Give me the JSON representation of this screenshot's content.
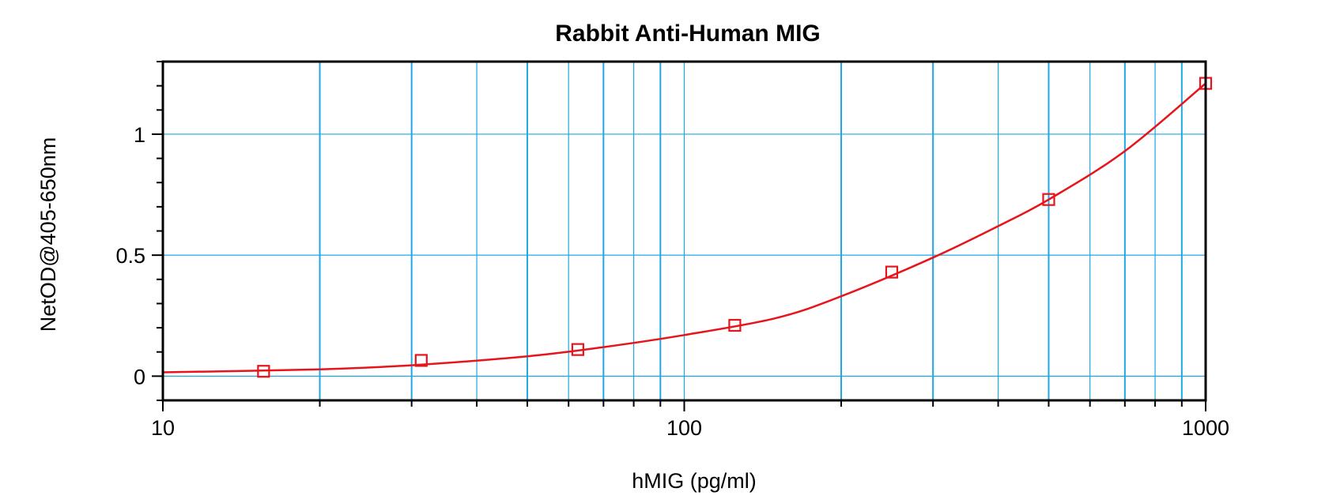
{
  "chart_data": {
    "type": "scatter",
    "title": "Rabbit Anti-Human MIG",
    "xlabel": "hMIG (pg/ml)",
    "ylabel": "NetOD@405-650nm",
    "x_scale": "log",
    "xlim": [
      10,
      1000
    ],
    "ylim": [
      -0.1,
      1.3
    ],
    "x_ticks": [
      {
        "value": 10,
        "label": "10"
      },
      {
        "value": 100,
        "label": "100"
      },
      {
        "value": 1000,
        "label": "1000"
      }
    ],
    "y_ticks": [
      {
        "value": 0,
        "label": "0"
      },
      {
        "value": 0.5,
        "label": "0.5"
      },
      {
        "value": 1,
        "label": "1"
      }
    ],
    "grid": true,
    "legend": "none",
    "series": [
      {
        "points": [
          {
            "x": 15.6,
            "y": 0.02
          },
          {
            "x": 31.3,
            "y": 0.065
          },
          {
            "x": 62.5,
            "y": 0.11
          },
          {
            "x": 125,
            "y": 0.21
          },
          {
            "x": 250,
            "y": 0.43
          },
          {
            "x": 500,
            "y": 0.73
          },
          {
            "x": 1000,
            "y": 1.21
          }
        ],
        "fit_curve": [
          {
            "x": 10,
            "y": 0.016
          },
          {
            "x": 20,
            "y": 0.028
          },
          {
            "x": 30,
            "y": 0.045
          },
          {
            "x": 50,
            "y": 0.082
          },
          {
            "x": 70,
            "y": 0.12
          },
          {
            "x": 100,
            "y": 0.17
          },
          {
            "x": 150,
            "y": 0.24
          },
          {
            "x": 200,
            "y": 0.33
          },
          {
            "x": 300,
            "y": 0.49
          },
          {
            "x": 400,
            "y": 0.62
          },
          {
            "x": 500,
            "y": 0.73
          },
          {
            "x": 700,
            "y": 0.93
          },
          {
            "x": 1000,
            "y": 1.21
          }
        ]
      }
    ]
  },
  "colors": {
    "data": "#e8141c",
    "grid": "#1fa8e0",
    "frame": "#000000"
  }
}
